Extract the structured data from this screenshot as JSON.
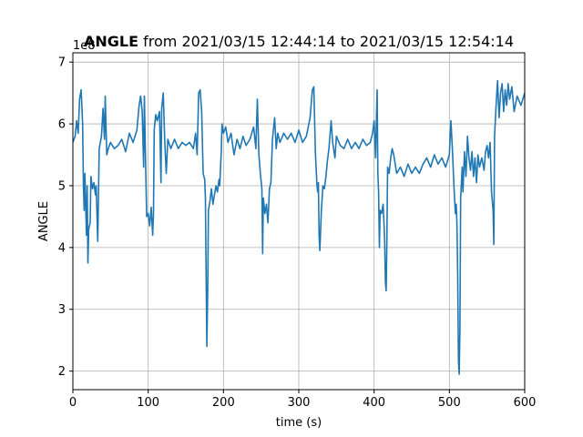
{
  "chart_data": {
    "type": "line",
    "title": {
      "variable": "ANGLE",
      "range_text": " from 2021/03/15 12:44:14 to 2021/03/15 12:54:14"
    },
    "xlabel": "time (s)",
    "ylabel": "ANGLE",
    "y_offset_text": "1e8",
    "xlim": [
      0,
      600
    ],
    "ylim": [
      1.7,
      7.15
    ],
    "x_ticks": [
      0,
      100,
      200,
      300,
      400,
      500,
      600
    ],
    "y_ticks": [
      2,
      3,
      4,
      5,
      6,
      7
    ],
    "grid": true,
    "series": [
      {
        "color": "#1f77b4",
        "points": [
          [
            0,
            5.7
          ],
          [
            3,
            5.8
          ],
          [
            5,
            6.05
          ],
          [
            7,
            5.85
          ],
          [
            9,
            6.4
          ],
          [
            11,
            6.55
          ],
          [
            13,
            6.0
          ],
          [
            14,
            5.0
          ],
          [
            15,
            4.6
          ],
          [
            16,
            5.2
          ],
          [
            18,
            4.2
          ],
          [
            19,
            5.0
          ],
          [
            20,
            3.75
          ],
          [
            21,
            4.3
          ],
          [
            23,
            4.4
          ],
          [
            24,
            5.15
          ],
          [
            26,
            4.95
          ],
          [
            28,
            5.05
          ],
          [
            30,
            4.85
          ],
          [
            31,
            5.0
          ],
          [
            33,
            4.1
          ],
          [
            35,
            5.6
          ],
          [
            38,
            5.8
          ],
          [
            40,
            6.25
          ],
          [
            42,
            5.75
          ],
          [
            43,
            6.45
          ],
          [
            45,
            5.5
          ],
          [
            47,
            5.6
          ],
          [
            50,
            5.7
          ],
          [
            55,
            5.6
          ],
          [
            60,
            5.65
          ],
          [
            65,
            5.75
          ],
          [
            70,
            5.55
          ],
          [
            75,
            5.85
          ],
          [
            80,
            5.7
          ],
          [
            85,
            5.9
          ],
          [
            88,
            6.3
          ],
          [
            90,
            6.45
          ],
          [
            92,
            6.2
          ],
          [
            94,
            5.3
          ],
          [
            95,
            6.45
          ],
          [
            96,
            5.7
          ],
          [
            98,
            4.5
          ],
          [
            100,
            4.55
          ],
          [
            102,
            4.35
          ],
          [
            104,
            4.65
          ],
          [
            106,
            4.2
          ],
          [
            107,
            4.55
          ],
          [
            108,
            5.9
          ],
          [
            110,
            6.15
          ],
          [
            112,
            6.05
          ],
          [
            115,
            6.2
          ],
          [
            117,
            5.05
          ],
          [
            118,
            6.25
          ],
          [
            120,
            6.5
          ],
          [
            122,
            5.7
          ],
          [
            124,
            5.2
          ],
          [
            126,
            5.75
          ],
          [
            130,
            5.6
          ],
          [
            135,
            5.75
          ],
          [
            140,
            5.6
          ],
          [
            145,
            5.7
          ],
          [
            150,
            5.65
          ],
          [
            155,
            5.7
          ],
          [
            160,
            5.6
          ],
          [
            163,
            5.85
          ],
          [
            165,
            5.5
          ],
          [
            167,
            6.5
          ],
          [
            169,
            6.55
          ],
          [
            171,
            6.2
          ],
          [
            173,
            5.2
          ],
          [
            175,
            5.1
          ],
          [
            176,
            4.8
          ],
          [
            177,
            3.5
          ],
          [
            178,
            2.4
          ],
          [
            179,
            3.3
          ],
          [
            180,
            4.6
          ],
          [
            182,
            4.75
          ],
          [
            184,
            4.95
          ],
          [
            186,
            4.7
          ],
          [
            188,
            4.85
          ],
          [
            190,
            5.0
          ],
          [
            192,
            4.9
          ],
          [
            194,
            5.1
          ],
          [
            195,
            5.0
          ],
          [
            197,
            5.55
          ],
          [
            198,
            6.0
          ],
          [
            200,
            5.85
          ],
          [
            203,
            5.95
          ],
          [
            206,
            5.7
          ],
          [
            210,
            5.85
          ],
          [
            214,
            5.5
          ],
          [
            218,
            5.75
          ],
          [
            222,
            5.6
          ],
          [
            226,
            5.8
          ],
          [
            230,
            5.65
          ],
          [
            235,
            5.75
          ],
          [
            240,
            5.95
          ],
          [
            243,
            5.6
          ],
          [
            245,
            6.4
          ],
          [
            247,
            5.5
          ],
          [
            249,
            5.2
          ],
          [
            251,
            4.95
          ],
          [
            252,
            3.9
          ],
          [
            253,
            4.8
          ],
          [
            255,
            4.55
          ],
          [
            257,
            4.7
          ],
          [
            259,
            4.4
          ],
          [
            261,
            4.95
          ],
          [
            263,
            5.05
          ],
          [
            265,
            5.75
          ],
          [
            268,
            6.1
          ],
          [
            270,
            5.6
          ],
          [
            272,
            5.85
          ],
          [
            275,
            5.7
          ],
          [
            280,
            5.85
          ],
          [
            285,
            5.75
          ],
          [
            290,
            5.85
          ],
          [
            295,
            5.7
          ],
          [
            300,
            5.9
          ],
          [
            305,
            5.7
          ],
          [
            310,
            5.8
          ],
          [
            315,
            6.1
          ],
          [
            318,
            6.55
          ],
          [
            320,
            6.6
          ],
          [
            322,
            5.55
          ],
          [
            324,
            5.05
          ],
          [
            325,
            4.9
          ],
          [
            326,
            5.05
          ],
          [
            327,
            4.2
          ],
          [
            328,
            3.95
          ],
          [
            330,
            4.6
          ],
          [
            332,
            5.0
          ],
          [
            334,
            4.95
          ],
          [
            336,
            5.15
          ],
          [
            338,
            5.4
          ],
          [
            340,
            5.6
          ],
          [
            343,
            6.05
          ],
          [
            345,
            5.7
          ],
          [
            348,
            5.45
          ],
          [
            350,
            5.8
          ],
          [
            355,
            5.65
          ],
          [
            360,
            5.6
          ],
          [
            365,
            5.75
          ],
          [
            370,
            5.6
          ],
          [
            375,
            5.7
          ],
          [
            380,
            5.6
          ],
          [
            385,
            5.75
          ],
          [
            390,
            5.65
          ],
          [
            395,
            5.7
          ],
          [
            398,
            5.85
          ],
          [
            400,
            6.05
          ],
          [
            402,
            5.45
          ],
          [
            404,
            6.55
          ],
          [
            405,
            5.2
          ],
          [
            406,
            4.9
          ],
          [
            407,
            4.0
          ],
          [
            408,
            4.6
          ],
          [
            410,
            4.55
          ],
          [
            412,
            4.7
          ],
          [
            414,
            4.15
          ],
          [
            415,
            3.45
          ],
          [
            416,
            3.3
          ],
          [
            417,
            4.1
          ],
          [
            418,
            5.3
          ],
          [
            420,
            5.2
          ],
          [
            422,
            5.45
          ],
          [
            424,
            5.6
          ],
          [
            426,
            5.5
          ],
          [
            430,
            5.2
          ],
          [
            435,
            5.3
          ],
          [
            440,
            5.15
          ],
          [
            445,
            5.35
          ],
          [
            450,
            5.2
          ],
          [
            455,
            5.3
          ],
          [
            460,
            5.2
          ],
          [
            465,
            5.35
          ],
          [
            470,
            5.45
          ],
          [
            475,
            5.3
          ],
          [
            480,
            5.5
          ],
          [
            485,
            5.35
          ],
          [
            490,
            5.45
          ],
          [
            495,
            5.3
          ],
          [
            500,
            5.5
          ],
          [
            502,
            6.05
          ],
          [
            504,
            5.6
          ],
          [
            506,
            5.0
          ],
          [
            508,
            4.55
          ],
          [
            509,
            4.7
          ],
          [
            510,
            4.4
          ],
          [
            511,
            3.6
          ],
          [
            512,
            2.15
          ],
          [
            513,
            1.95
          ],
          [
            514,
            2.7
          ],
          [
            515,
            4.8
          ],
          [
            517,
            5.3
          ],
          [
            518,
            4.9
          ],
          [
            520,
            5.55
          ],
          [
            522,
            5.15
          ],
          [
            524,
            5.8
          ],
          [
            526,
            5.45
          ],
          [
            528,
            5.25
          ],
          [
            530,
            5.55
          ],
          [
            532,
            5.15
          ],
          [
            534,
            5.45
          ],
          [
            536,
            5.05
          ],
          [
            538,
            5.5
          ],
          [
            540,
            5.3
          ],
          [
            543,
            5.45
          ],
          [
            546,
            5.25
          ],
          [
            548,
            5.55
          ],
          [
            550,
            5.65
          ],
          [
            552,
            5.45
          ],
          [
            554,
            5.7
          ],
          [
            556,
            4.9
          ],
          [
            558,
            4.6
          ],
          [
            559,
            4.05
          ],
          [
            560,
            5.8
          ],
          [
            562,
            6.3
          ],
          [
            564,
            6.7
          ],
          [
            566,
            6.1
          ],
          [
            568,
            6.5
          ],
          [
            570,
            6.65
          ],
          [
            572,
            6.2
          ],
          [
            574,
            6.55
          ],
          [
            576,
            6.3
          ],
          [
            578,
            6.65
          ],
          [
            580,
            6.4
          ],
          [
            583,
            6.6
          ],
          [
            586,
            6.2
          ],
          [
            590,
            6.45
          ],
          [
            595,
            6.3
          ],
          [
            600,
            6.5
          ]
        ]
      }
    ]
  }
}
